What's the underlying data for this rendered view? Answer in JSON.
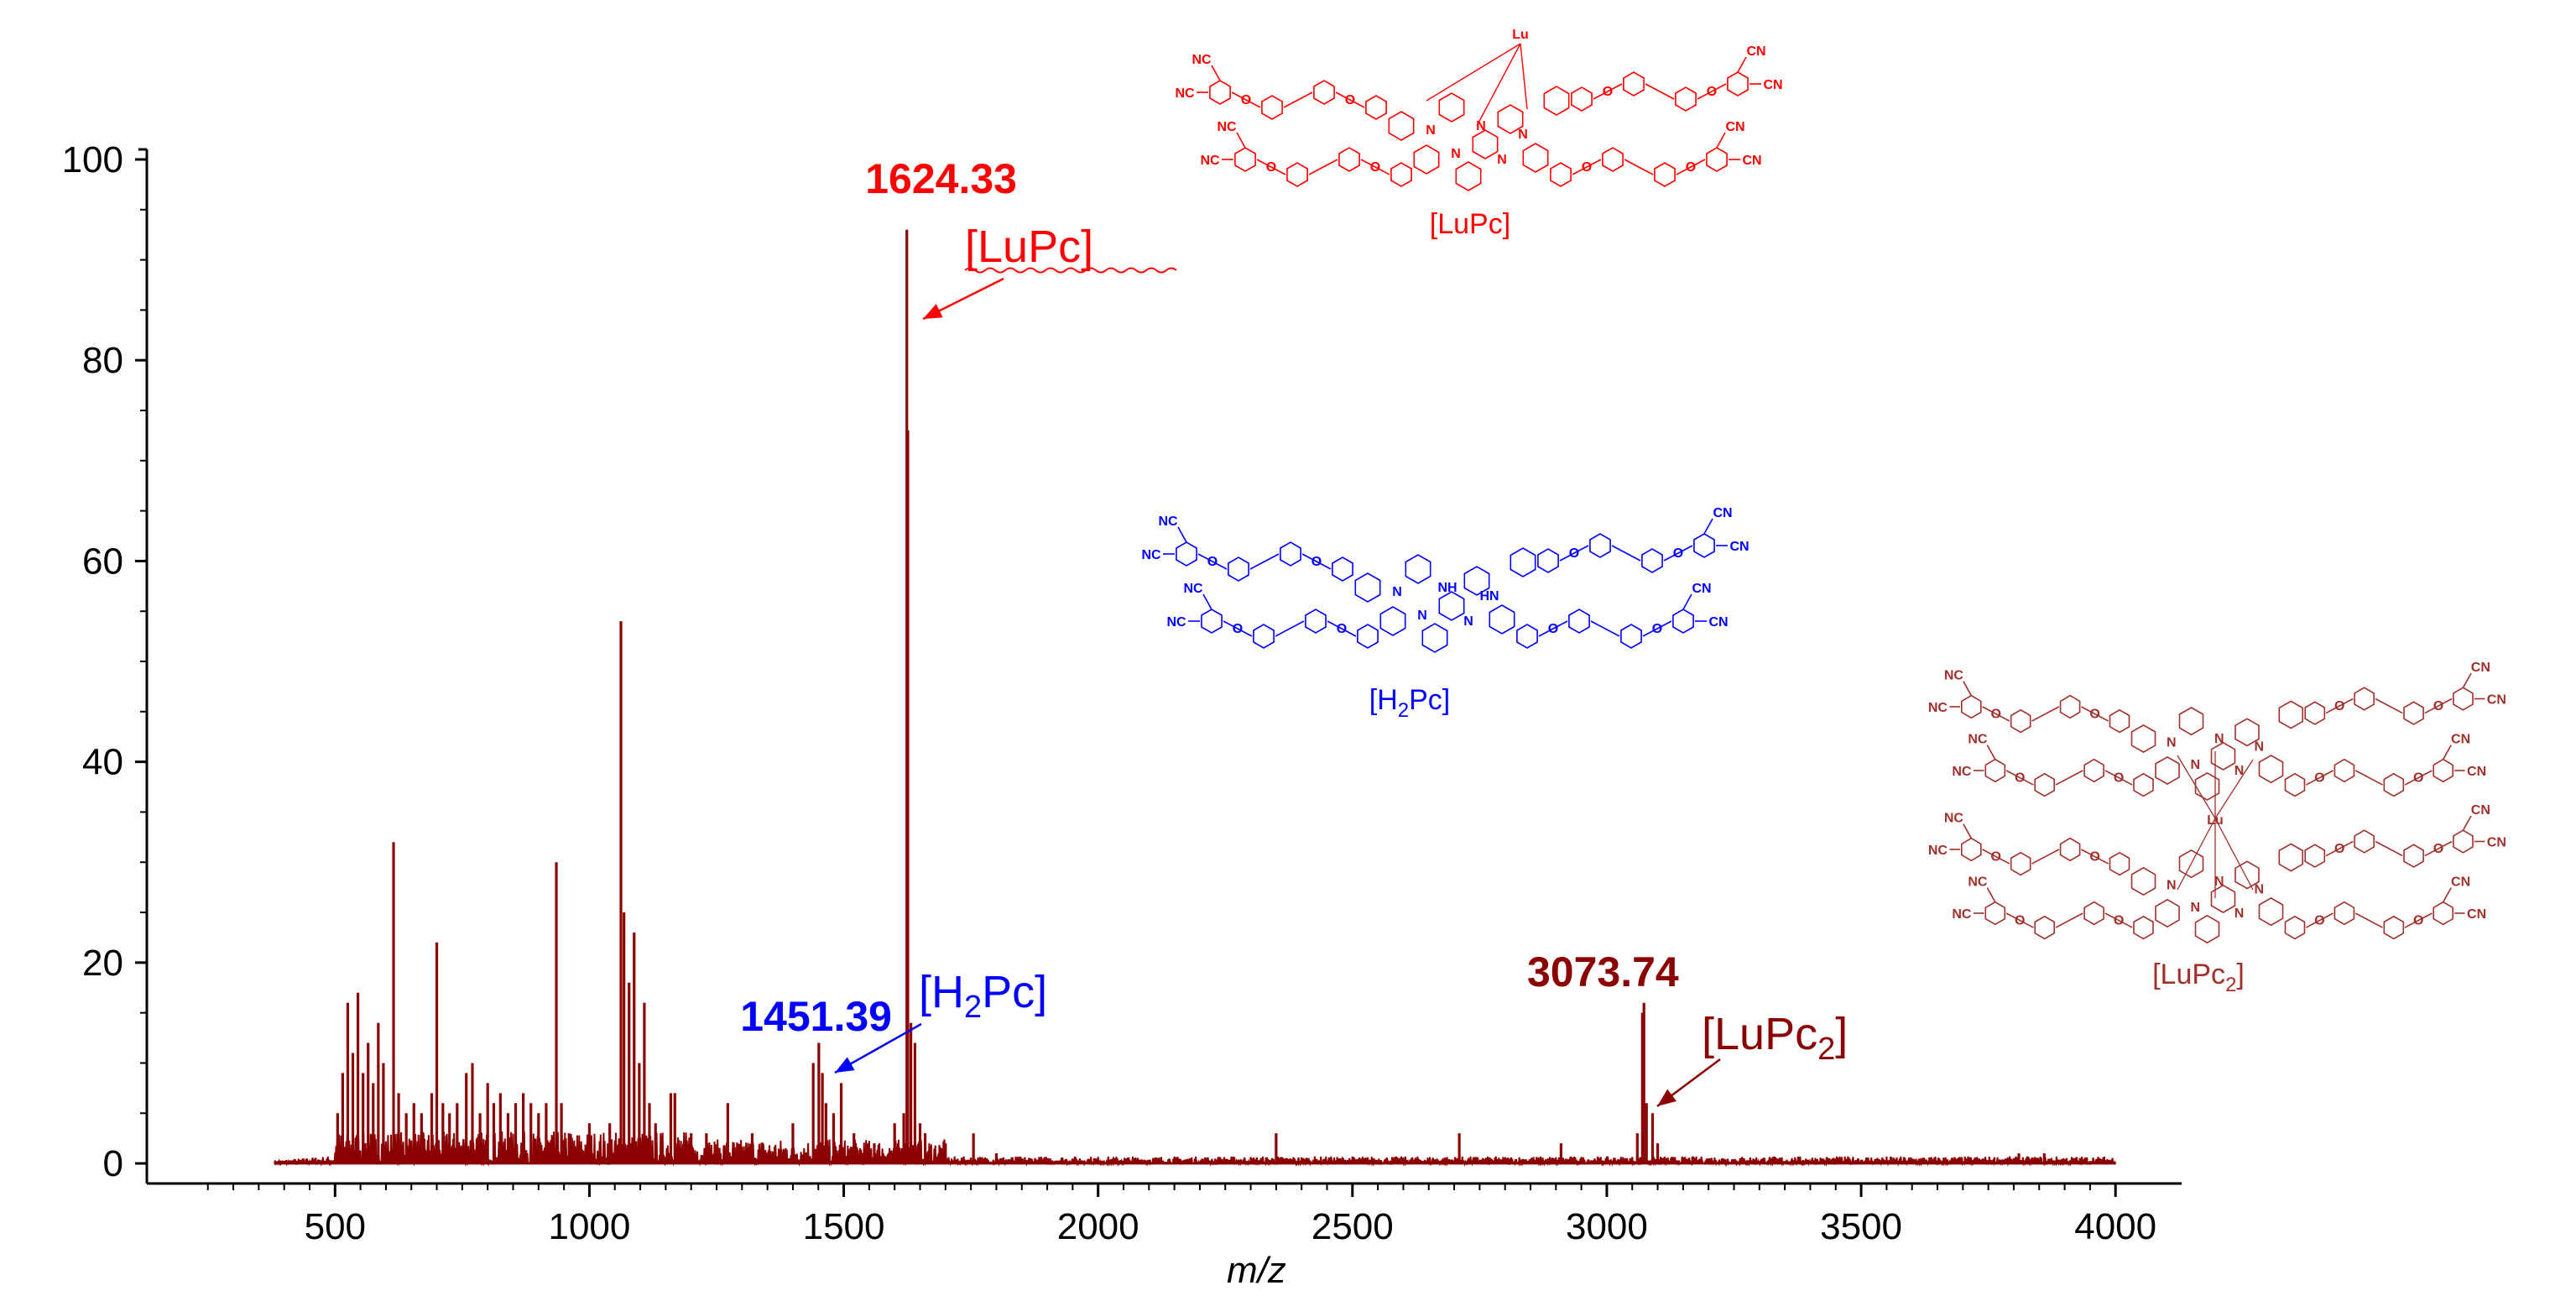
{
  "chart_data": {
    "type": "line",
    "subtype": "mass-spectrum",
    "title": "",
    "xlabel": "m/z",
    "ylabel": "",
    "xlim": [
      130,
      4130
    ],
    "ylim": [
      -2,
      101
    ],
    "xticks": [
      500,
      1000,
      1500,
      2000,
      2500,
      3000,
      3500,
      4000
    ],
    "yticks": [
      0,
      20,
      40,
      60,
      80,
      100
    ],
    "grid": false,
    "series_color": "#8b0000",
    "baseline_range": [
      380,
      4000
    ],
    "peaks": [
      [
        505,
        5
      ],
      [
        515,
        9
      ],
      [
        525,
        16
      ],
      [
        535,
        11
      ],
      [
        545,
        17
      ],
      [
        555,
        9
      ],
      [
        565,
        12
      ],
      [
        575,
        8
      ],
      [
        585,
        14
      ],
      [
        595,
        10
      ],
      [
        615,
        32
      ],
      [
        625,
        7
      ],
      [
        640,
        5
      ],
      [
        655,
        6
      ],
      [
        670,
        5
      ],
      [
        690,
        7
      ],
      [
        700,
        22
      ],
      [
        712,
        6
      ],
      [
        725,
        5
      ],
      [
        740,
        6
      ],
      [
        758,
        9
      ],
      [
        770,
        10
      ],
      [
        785,
        5
      ],
      [
        800,
        8
      ],
      [
        812,
        6
      ],
      [
        825,
        7
      ],
      [
        840,
        5
      ],
      [
        855,
        6
      ],
      [
        870,
        7
      ],
      [
        885,
        6
      ],
      [
        900,
        5
      ],
      [
        915,
        6
      ],
      [
        935,
        30
      ],
      [
        945,
        6
      ],
      [
        960,
        3
      ],
      [
        1000,
        4
      ],
      [
        1040,
        4
      ],
      [
        1062,
        54
      ],
      [
        1068,
        25
      ],
      [
        1078,
        18
      ],
      [
        1088,
        23
      ],
      [
        1098,
        10
      ],
      [
        1108,
        16
      ],
      [
        1118,
        6
      ],
      [
        1130,
        4
      ],
      [
        1160,
        7
      ],
      [
        1168,
        7
      ],
      [
        1200,
        3
      ],
      [
        1230,
        3
      ],
      [
        1272,
        6
      ],
      [
        1320,
        3
      ],
      [
        1400,
        4
      ],
      [
        1440,
        10
      ],
      [
        1451,
        12
      ],
      [
        1458,
        9
      ],
      [
        1465,
        6
      ],
      [
        1480,
        5
      ],
      [
        1495,
        8
      ],
      [
        1520,
        3
      ],
      [
        1548,
        2
      ],
      [
        1560,
        2
      ],
      [
        1600,
        4
      ],
      [
        1618,
        5
      ],
      [
        1624,
        93
      ],
      [
        1626,
        73
      ],
      [
        1632,
        14
      ],
      [
        1640,
        12
      ],
      [
        1650,
        4
      ],
      [
        1660,
        3
      ],
      [
        1700,
        2
      ],
      [
        1755,
        3
      ],
      [
        1800,
        1
      ],
      [
        2350,
        3
      ],
      [
        2710,
        3
      ],
      [
        2910,
        2
      ],
      [
        3060,
        3
      ],
      [
        3070,
        15
      ],
      [
        3073,
        16
      ],
      [
        3078,
        6
      ],
      [
        3090,
        5
      ],
      [
        3100,
        2
      ],
      [
        3810,
        1
      ],
      [
        3860,
        1
      ]
    ],
    "annotations": [
      {
        "mz": 1624.33,
        "value_label": "1624.33",
        "species": "[LuPc]",
        "color": "#ff0000"
      },
      {
        "mz": 1451.39,
        "value_label": "1451.39",
        "species": "[H2Pc]",
        "species_base": "[H",
        "species_sub": "2",
        "species_end": "Pc]",
        "color": "#0000ff"
      },
      {
        "mz": 3073.74,
        "value_label": "3073.74",
        "species": "[LuPc2]",
        "species_base": "[LuPc",
        "species_sub": "2",
        "species_end": "]",
        "color": "#8b0000"
      }
    ]
  },
  "structures": [
    {
      "id": "lupc",
      "caption": "[LuPc]",
      "caption_base": "[LuPc]",
      "color": "#ff0000",
      "metal": "Lu",
      "layers": 1
    },
    {
      "id": "h2pc",
      "caption": "[H2Pc]",
      "caption_base": "[H",
      "caption_sub": "2",
      "caption_end": "Pc]",
      "color": "#0000ff",
      "metal": "",
      "layers": 1
    },
    {
      "id": "lupc2",
      "caption": "[LuPc2]",
      "caption_base": "[LuPc",
      "caption_sub": "2",
      "caption_end": "]",
      "color": "#a0302c",
      "metal": "Lu",
      "layers": 2
    }
  ],
  "atom_labels": {
    "nitrile": "NC",
    "nitrile_right": "CN",
    "oxygen": "O",
    "nitrogen": "N",
    "amine_h": "NH",
    "amine_h2": "HN"
  }
}
